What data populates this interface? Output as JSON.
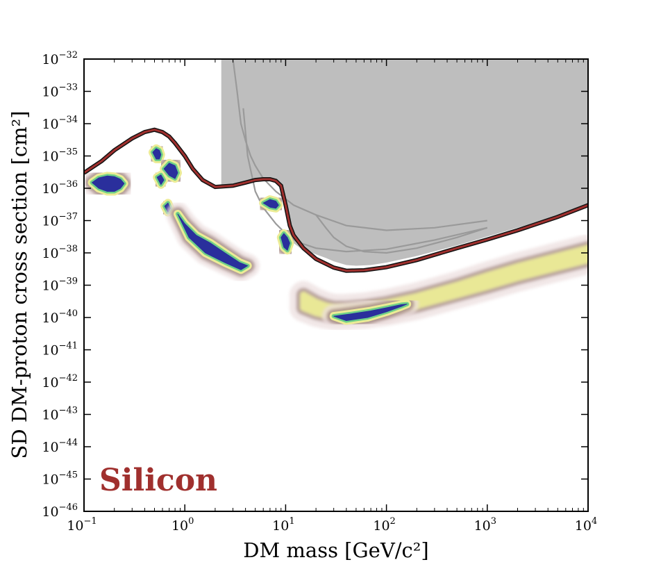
{
  "chart_data": {
    "type": "line",
    "xscale": "log",
    "yscale": "log",
    "xlim": [
      0.1,
      10000
    ],
    "ylim": [
      1e-46,
      1e-32
    ],
    "xlabel": "DM mass [GeV/c²]",
    "ylabel": "SD DM-proton cross section [cm²]",
    "x_ticks": [
      {
        "base": "10",
        "exp": "−1",
        "value": 0.1
      },
      {
        "base": "10",
        "exp": "0",
        "value": 1
      },
      {
        "base": "10",
        "exp": "1",
        "value": 10
      },
      {
        "base": "10",
        "exp": "2",
        "value": 100
      },
      {
        "base": "10",
        "exp": "3",
        "value": 1000
      },
      {
        "base": "10",
        "exp": "4",
        "value": 10000
      }
    ],
    "y_ticks": [
      {
        "base": "10",
        "exp": "−46",
        "value": 1e-46
      },
      {
        "base": "10",
        "exp": "−45",
        "value": 1e-45
      },
      {
        "base": "10",
        "exp": "−44",
        "value": 1e-44
      },
      {
        "base": "10",
        "exp": "−43",
        "value": 1e-43
      },
      {
        "base": "10",
        "exp": "−42",
        "value": 1e-42
      },
      {
        "base": "10",
        "exp": "−41",
        "value": 1e-41
      },
      {
        "base": "10",
        "exp": "−40",
        "value": 1e-40
      },
      {
        "base": "10",
        "exp": "−39",
        "value": 1e-39
      },
      {
        "base": "10",
        "exp": "−38",
        "value": 1e-38
      },
      {
        "base": "10",
        "exp": "−37",
        "value": 1e-37
      },
      {
        "base": "10",
        "exp": "−36",
        "value": 1e-36
      },
      {
        "base": "10",
        "exp": "−35",
        "value": 1e-35
      },
      {
        "base": "10",
        "exp": "−34",
        "value": 1e-34
      },
      {
        "base": "10",
        "exp": "−33",
        "value": 1e-33
      },
      {
        "base": "10",
        "exp": "−32",
        "value": 1e-32
      }
    ],
    "target_label": "Silicon",
    "colors": {
      "excluded_region": "#bebebe",
      "existing_limits": "#9a9a9a",
      "limit_curve": "#a0302e",
      "limit_outline": "#111111",
      "target_label": "#a0302e",
      "contour_outer": "#ecdede",
      "contour_mid": "#8a6a64",
      "contour_yellow": "#ecec96",
      "contour_green": "#6fd088",
      "contour_core": "#2a2f9c"
    },
    "excluded_region": {
      "x": [
        2.3,
        2.3,
        10000,
        10000,
        2000,
        1000,
        500,
        200,
        100,
        50,
        30,
        20,
        15,
        12
      ],
      "y": [
        1e-32,
        1e-36,
        1e-36,
        1e-32,
        1e-32,
        1e-32,
        1e-32,
        1e-32,
        1e-32,
        1e-32,
        1e-32,
        1e-32,
        1e-32,
        1e-32
      ]
    },
    "excluded_boundary": {
      "x": [
        2.3,
        2.3,
        3,
        4,
        5,
        6,
        7,
        8,
        9,
        10,
        11,
        12,
        14,
        17,
        20,
        25,
        30,
        40,
        50,
        70,
        100,
        200,
        500,
        1000,
        2000,
        5000,
        10000
      ],
      "y": [
        1e-32,
        1.2e-36,
        1.1e-36,
        1.3e-36,
        1.6e-36,
        1.8e-36,
        1.8e-36,
        1.5e-36,
        9e-37,
        2e-37,
        4e-38,
        2e-38,
        1.4e-38,
        1.1e-38,
        9e-39,
        7e-39,
        5.5e-39,
        4.2e-39,
        4e-39,
        4.2e-39,
        5e-39,
        8e-39,
        1.7e-38,
        3.2e-38,
        6e-38,
        1.4e-37,
        2.6e-37
      ]
    },
    "existing_limits": [
      {
        "x": [
          3,
          3.3,
          3.6,
          4,
          4.5,
          5,
          6,
          8,
          12,
          20,
          40,
          100,
          300,
          1000
        ],
        "y": [
          1e-32,
          1e-33,
          1e-34,
          3e-35,
          1e-35,
          5e-36,
          2e-36,
          8e-37,
          3e-37,
          1.5e-37,
          7e-38,
          5e-38,
          6e-38,
          1e-37
        ]
      },
      {
        "x": [
          3.8,
          4.2,
          5,
          6,
          8,
          10,
          13,
          20,
          40,
          100,
          300,
          1000
        ],
        "y": [
          3e-34,
          1e-35,
          8e-37,
          2.5e-37,
          8e-38,
          4e-38,
          2.2e-38,
          1.4e-38,
          1.1e-38,
          1.3e-38,
          2.5e-38,
          6e-38
        ]
      },
      {
        "x": [
          20,
          25,
          30,
          40,
          60,
          100,
          200,
          500,
          1000
        ],
        "y": [
          1.5e-37,
          6e-38,
          3e-38,
          1.6e-38,
          1.1e-38,
          1e-38,
          1.4e-38,
          3e-38,
          6e-38
        ]
      }
    ],
    "limit_curve": {
      "x": [
        0.1,
        0.15,
        0.2,
        0.3,
        0.4,
        0.5,
        0.6,
        0.7,
        0.8,
        1,
        1.2,
        1.5,
        2,
        3,
        4,
        5,
        6,
        7,
        8,
        9,
        10,
        11,
        12,
        15,
        20,
        30,
        40,
        60,
        100,
        200,
        500,
        1000,
        2000,
        5000,
        10000
      ],
      "y": [
        3e-36,
        7e-36,
        1.5e-35,
        3.5e-35,
        5.5e-35,
        6.5e-35,
        5.5e-35,
        4e-35,
        2.5e-35,
        1e-35,
        4e-36,
        1.8e-36,
        1.1e-36,
        1.2e-36,
        1.5e-36,
        1.8e-36,
        1.9e-36,
        1.9e-36,
        1.7e-36,
        1.2e-36,
        3e-37,
        7e-38,
        3.5e-38,
        1.4e-38,
        6.5e-39,
        3.5e-39,
        2.8e-39,
        2.9e-39,
        3.6e-39,
        6e-39,
        1.4e-38,
        2.6e-38,
        5e-38,
        1.3e-37,
        3e-37
      ]
    },
    "posterior_contours": [
      {
        "name": "",
        "x": [
          0.12,
          0.14,
          0.17,
          0.2,
          0.23,
          0.25,
          0.23,
          0.2,
          0.17,
          0.14,
          0.12
        ],
        "y": [
          1.5e-36,
          2.1e-36,
          2.4e-36,
          2.3e-36,
          1.9e-36,
          1.4e-36,
          1e-36,
          8e-37,
          8e-37,
          1e-36,
          1.5e-36
        ],
        "level": "core"
      },
      {
        "name": "",
        "x": [
          0.48,
          0.52,
          0.56,
          0.58,
          0.56,
          0.52,
          0.48
        ],
        "y": [
          1.3e-35,
          1.7e-35,
          1.5e-35,
          1.1e-35,
          8e-36,
          8e-36,
          1.3e-35
        ],
        "level": "core"
      },
      {
        "name": "",
        "x": [
          0.62,
          0.7,
          0.8,
          0.85,
          0.8,
          0.7,
          0.62
        ],
        "y": [
          4e-36,
          6e-36,
          5e-36,
          3e-36,
          2e-36,
          2.5e-36,
          4e-36
        ],
        "level": "core"
      },
      {
        "name": "",
        "x": [
          0.53,
          0.58,
          0.62,
          0.58,
          0.53
        ],
        "y": [
          2.2e-36,
          2.6e-36,
          1.8e-36,
          1.3e-36,
          2.2e-36
        ],
        "level": "core"
      },
      {
        "name": "",
        "x": [
          0.63,
          0.68,
          0.72,
          0.68,
          0.63
        ],
        "y": [
          2.8e-37,
          3.5e-37,
          2.4e-37,
          1.8e-37,
          2.8e-37
        ],
        "level": "core"
      },
      {
        "name": "",
        "x": [
          0.85,
          1,
          1.3,
          1.8,
          2.5,
          3.5,
          4.2,
          3.6,
          2.5,
          1.6,
          1.1,
          0.85
        ],
        "y": [
          1.6e-37,
          8e-38,
          3.5e-38,
          2e-38,
          1e-38,
          5e-39,
          4e-39,
          3e-39,
          5e-39,
          1e-38,
          3e-38,
          1.6e-37
        ],
        "level": "core"
      },
      {
        "name": "",
        "x": [
          6,
          7,
          8,
          8.5,
          8,
          7,
          6
        ],
        "y": [
          3.5e-37,
          4.5e-37,
          4e-37,
          3e-37,
          2.4e-37,
          2.6e-37,
          3.5e-37
        ],
        "level": "core"
      },
      {
        "name": "",
        "x": [
          9,
          9.6,
          10.4,
          11,
          10.4,
          9.6,
          9
        ],
        "y": [
          3e-38,
          4e-38,
          3e-38,
          2e-38,
          1.2e-38,
          1.5e-38,
          3e-38
        ],
        "level": "core"
      },
      {
        "name": "",
        "x": [
          30,
          45,
          70,
          100,
          140,
          160,
          140,
          100,
          65,
          40,
          30
        ],
        "y": [
          1.1e-40,
          1.3e-40,
          1.6e-40,
          2e-40,
          2.5e-40,
          2.6e-40,
          2.2e-40,
          1.5e-40,
          1e-40,
          8e-41,
          1.1e-40
        ],
        "level": "core"
      }
    ],
    "posterior_band_lower": {
      "x": [
        15,
        20,
        25,
        30,
        40,
        60,
        100,
        200,
        500,
        1000,
        2000,
        5000,
        10000
      ],
      "y": [
        2e-40,
        1.4e-40,
        1.2e-40,
        1.1e-40,
        1.1e-40,
        1.2e-40,
        1.5e-40,
        2.3e-40,
        5e-40,
        9e-40,
        1.7e-39,
        3.5e-39,
        6e-39
      ]
    },
    "posterior_band_upper": {
      "x": [
        15,
        20,
        25,
        30,
        40,
        60,
        100,
        200,
        500,
        1000,
        2000,
        5000,
        10000
      ],
      "y": [
        5e-40,
        3e-40,
        2.3e-40,
        2e-40,
        2e-40,
        2.2e-40,
        2.8e-40,
        4.5e-40,
        1e-39,
        2e-39,
        3.8e-39,
        8e-39,
        1.4e-38
      ]
    }
  }
}
